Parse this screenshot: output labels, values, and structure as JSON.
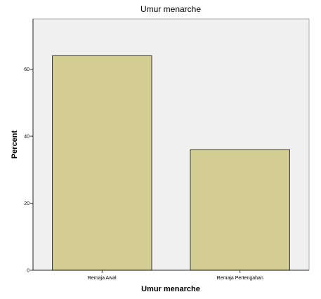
{
  "chart_data": {
    "type": "bar",
    "title": "Umur menarche",
    "xlabel": "Umur menarche",
    "ylabel": "Percent",
    "categories": [
      "Remaja Awal",
      "Remaja Pertengahan"
    ],
    "values": [
      64,
      36
    ],
    "ylim": [
      0,
      75
    ],
    "yticks": [
      0,
      20,
      40,
      60
    ],
    "ytick_labels": [
      "0",
      "20",
      "40",
      "60"
    ],
    "grid": false,
    "bar_color": "#d3cd94",
    "bar_edge_color": "#3c3c32",
    "plot_background": "#f0f0f0"
  }
}
